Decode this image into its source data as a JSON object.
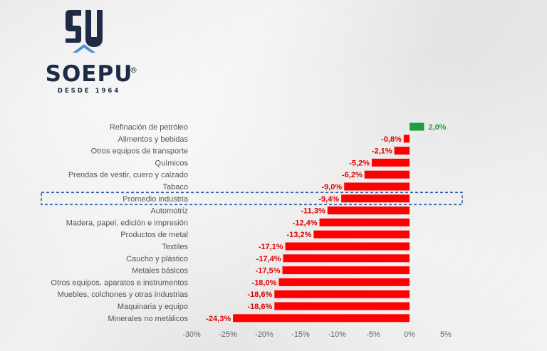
{
  "brand": {
    "monogram": "SU",
    "name": "SOEPU",
    "registered": "®",
    "tagline": "DESDE 1964"
  },
  "colors": {
    "negative": "#ff0000",
    "positive": "#1e9e3e",
    "negative_text": "#e00000",
    "positive_text": "#1e9e3e",
    "highlight_box": "#2e5fa8",
    "logo_navy": "#1d2b47",
    "logo_blue": "#4a90d9"
  },
  "chart_data": {
    "type": "bar",
    "orientation": "horizontal",
    "title": "",
    "xlabel": "",
    "ylabel": "",
    "xlim": [
      -30,
      5
    ],
    "x_ticks": [
      -30,
      -25,
      -20,
      -15,
      -10,
      -5,
      0,
      5
    ],
    "x_tick_labels": [
      "-30%",
      "-25%",
      "-20%",
      "-15%",
      "-10%",
      "-5%",
      "0%",
      "5%"
    ],
    "grid": false,
    "highlighted_category": "Promedio industria",
    "categories": [
      "Refinación de petróleo",
      "Alimentos y bebidas",
      "Otros equipos de transporte",
      "Químicos",
      "Prendas de vestir, cuero y calzado",
      "Tabaco",
      "Promedio industria",
      "Automotriz",
      "Madera, papel, edición e impresión",
      "Productos de metal",
      "Textiles",
      "Caucho y plástico",
      "Metales básicos",
      "Otros equipos, aparatos e instrumentos",
      "Muebles, colchones y otras industrias",
      "Maquinaria y equipo",
      "Minerales no metálicos"
    ],
    "values": [
      2.0,
      -0.8,
      -2.1,
      -5.2,
      -6.2,
      -9.0,
      -9.4,
      -11.3,
      -12.4,
      -13.2,
      -17.1,
      -17.4,
      -17.5,
      -18.0,
      -18.6,
      -18.6,
      -24.3
    ],
    "value_labels": [
      "2,0%",
      "-0,8%",
      "-2,1%",
      "-5,2%",
      "-6,2%",
      "-9,0%",
      "-9,4%",
      "-11,3%",
      "-12,4%",
      "-13,2%",
      "-17,1%",
      "-17,4%",
      "-17,5%",
      "-18,0%",
      "-18,6%",
      "-18,6%",
      "-24,3%"
    ]
  }
}
